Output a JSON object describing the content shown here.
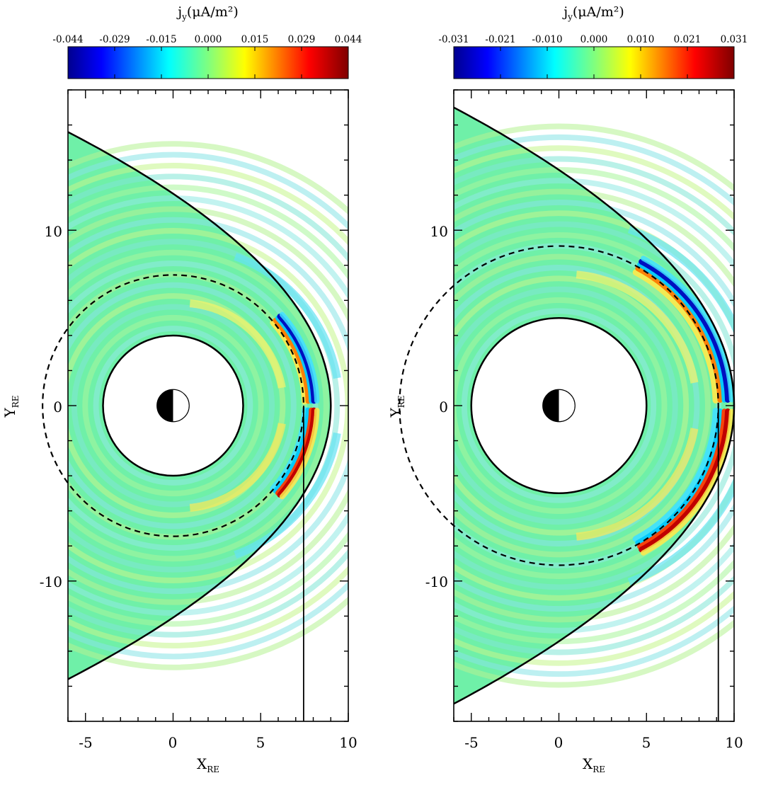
{
  "chart_data": [
    {
      "type": "heatmap",
      "title": "j",
      "title_sub": "y",
      "title_unit": "(μA/m²)",
      "colorbar_ticks": [
        "-0.044",
        "-0.029",
        "-0.015",
        "0.000",
        "0.015",
        "0.029",
        "0.044"
      ],
      "colorbar_range": [
        -0.044,
        0.044
      ],
      "xlabel": "X",
      "xlabel_sub": "RE",
      "ylabel": "Y",
      "ylabel_sub": "RE",
      "xlim": [
        -6,
        10
      ],
      "ylim": [
        -18,
        18
      ],
      "xticks": [
        "-5",
        "0",
        "5",
        "10"
      ],
      "yticks": [
        "10",
        "0",
        "-10"
      ],
      "inner_boundary_radius": 4,
      "outer_boundary_nose_x": 9,
      "outer_boundary_y_at_xmin": 15.6,
      "dashed_circle_radius": 7.45,
      "vertical_line_x": 7.45,
      "current_arc": {
        "radius": 7.45,
        "x_offset": 0.45,
        "band_width": 0.42,
        "peak_angle": 18,
        "angle_width": 24,
        "amplitude": 1.0
      }
    },
    {
      "type": "heatmap",
      "title": "j",
      "title_sub": "y",
      "title_unit": "(μA/m²)",
      "colorbar_ticks": [
        "-0.031",
        "-0.021",
        "-0.010",
        "0.000",
        "0.010",
        "0.021",
        "0.031"
      ],
      "colorbar_range": [
        -0.031,
        0.031
      ],
      "xlabel": "X",
      "xlabel_sub": "RE",
      "ylabel": "Y",
      "ylabel_sub": "RE",
      "xlim": [
        -6,
        10
      ],
      "ylim": [
        -18,
        18
      ],
      "xticks": [
        "-5",
        "0",
        "5",
        "10"
      ],
      "yticks": [
        "10",
        "0",
        "-10"
      ],
      "inner_boundary_radius": 5,
      "outer_boundary_nose_x": 10,
      "outer_boundary_y_at_xmin": 17.0,
      "dashed_circle_radius": 9.1,
      "vertical_line_x": 9.1,
      "current_arc": {
        "radius": 9.1,
        "x_offset": 0.35,
        "band_width": 0.55,
        "peak_angle": 28,
        "angle_width": 34,
        "amplitude": 1.0
      }
    }
  ],
  "colors": {
    "background_field": "#6ff0a8",
    "colormap": [
      "#00008f",
      "#0000ff",
      "#00ffff",
      "#7fff7f",
      "#ffff00",
      "#ff0000",
      "#7f0000"
    ]
  }
}
